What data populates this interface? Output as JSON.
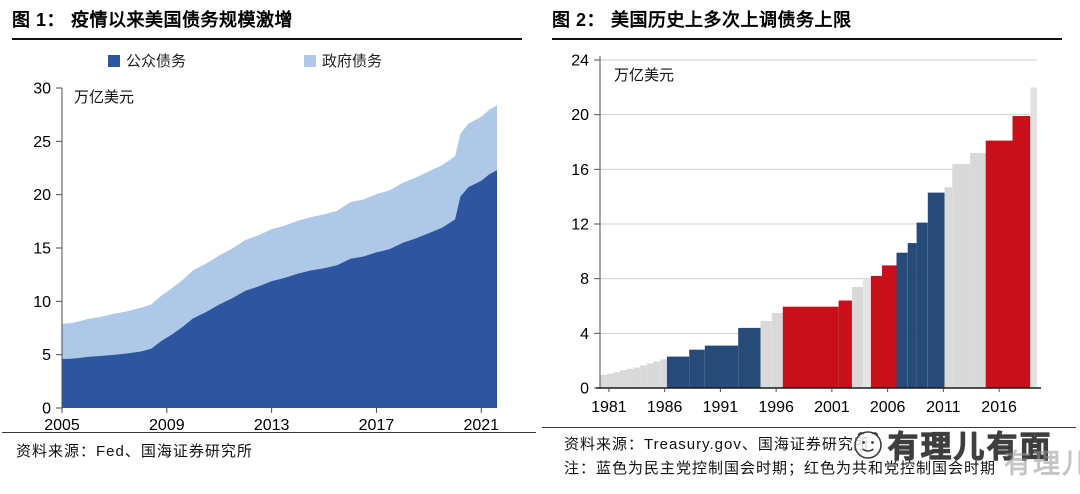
{
  "figure1": {
    "label": "图 1：",
    "title": "疫情以来美国债务规模激增",
    "unit": "万亿美元",
    "source": "资料来源：Fed、国海证券研究所",
    "legend": [
      {
        "label": "公众债务",
        "color": "#2e55a0"
      },
      {
        "label": "政府债务",
        "color": "#aec8e8"
      }
    ]
  },
  "figure2": {
    "label": "图 2：",
    "title": "美国历史上多次上调债务上限",
    "unit": "万亿美元",
    "source": "资料来源：Treasury.gov、国海证券研究所",
    "note": "注：蓝色为民主党控制国会时期；红色为共和党控制国会时期"
  },
  "watermark": {
    "text": "有理儿有面"
  },
  "colors": {
    "public_debt": "#2e55a0",
    "gov_debt": "#aec8e8",
    "dem_blue": "#274b78",
    "rep_red": "#c9101a",
    "neutral_gray": "#d9d9d9",
    "neutral_gray_light": "#e7e7e7",
    "gridline": "#cfcfcf",
    "axis": "#4d4d4d"
  },
  "chart_data": [
    {
      "type": "area",
      "stacked": true,
      "title": "疫情以来美国债务规模激增",
      "unit": "万亿美元",
      "ylim": [
        0,
        30
      ],
      "y_ticks": [
        0,
        5,
        10,
        15,
        20,
        25,
        30
      ],
      "x_ticks": [
        2005,
        2009,
        2013,
        2017,
        2021
      ],
      "x_range": [
        2005,
        2021.6
      ],
      "grid": false,
      "legend_position": "top",
      "series": [
        {
          "name": "公众债务",
          "color": "#2e55a0"
        },
        {
          "name": "政府债务",
          "color": "#aec8e8"
        }
      ],
      "points_format": [
        "year",
        "public_debt",
        "gov_debt_on_top"
      ],
      "points": [
        [
          2005.0,
          4.6,
          3.3
        ],
        [
          2005.3,
          4.62,
          3.33
        ],
        [
          2005.6,
          4.68,
          3.4
        ],
        [
          2006.0,
          4.8,
          3.55
        ],
        [
          2006.5,
          4.88,
          3.68
        ],
        [
          2007.0,
          5.0,
          3.85
        ],
        [
          2007.5,
          5.12,
          3.95
        ],
        [
          2008.0,
          5.3,
          4.1
        ],
        [
          2008.4,
          5.55,
          4.15
        ],
        [
          2008.8,
          6.3,
          4.25
        ],
        [
          2009.2,
          6.9,
          4.35
        ],
        [
          2009.6,
          7.6,
          4.4
        ],
        [
          2010.0,
          8.4,
          4.5
        ],
        [
          2010.5,
          9.0,
          4.55
        ],
        [
          2011.0,
          9.7,
          4.6
        ],
        [
          2011.5,
          10.3,
          4.65
        ],
        [
          2012.0,
          11.0,
          4.75
        ],
        [
          2012.5,
          11.4,
          4.8
        ],
        [
          2013.0,
          11.9,
          4.85
        ],
        [
          2013.5,
          12.2,
          4.9
        ],
        [
          2014.0,
          12.6,
          4.95
        ],
        [
          2014.5,
          12.9,
          5.0
        ],
        [
          2015.0,
          13.1,
          5.05
        ],
        [
          2015.5,
          13.4,
          5.1
        ],
        [
          2016.0,
          14.0,
          5.3
        ],
        [
          2016.5,
          14.2,
          5.35
        ],
        [
          2017.0,
          14.6,
          5.45
        ],
        [
          2017.5,
          14.9,
          5.5
        ],
        [
          2018.0,
          15.5,
          5.6
        ],
        [
          2018.5,
          15.9,
          5.7
        ],
        [
          2019.0,
          16.4,
          5.8
        ],
        [
          2019.5,
          16.9,
          5.85
        ],
        [
          2020.0,
          17.7,
          5.9
        ],
        [
          2020.2,
          19.8,
          5.9
        ],
        [
          2020.5,
          20.7,
          5.95
        ],
        [
          2021.0,
          21.3,
          6.0
        ],
        [
          2021.3,
          21.9,
          6.05
        ],
        [
          2021.6,
          22.3,
          6.1
        ]
      ]
    },
    {
      "type": "bar",
      "title": "美国历史上多次上调债务上限",
      "unit": "万亿美元",
      "ylim": [
        0,
        24
      ],
      "y_ticks": [
        0,
        4,
        8,
        12,
        16,
        20,
        24
      ],
      "x_ticks": [
        1981,
        1986,
        1991,
        1996,
        2001,
        2006,
        2011,
        2016
      ],
      "x_range": [
        1980.6,
        2019.8
      ],
      "grid": true,
      "party_colors": {
        "dem": "#274b78",
        "rep": "#c9101a",
        "other": "#d9d9d9",
        "other_light": "#e3e3e3"
      },
      "bars_format": [
        "from_year",
        "to_year",
        "ceiling_trillion_usd",
        "party"
      ],
      "bars": [
        [
          1980.6,
          1981.2,
          0.95,
          "other"
        ],
        [
          1981.2,
          1981.8,
          1.05,
          "other"
        ],
        [
          1981.8,
          1982.4,
          1.15,
          "other"
        ],
        [
          1982.4,
          1983.0,
          1.3,
          "other"
        ],
        [
          1983.0,
          1983.6,
          1.4,
          "other"
        ],
        [
          1983.6,
          1984.2,
          1.5,
          "other"
        ],
        [
          1984.2,
          1984.8,
          1.65,
          "other"
        ],
        [
          1984.8,
          1985.4,
          1.8,
          "other"
        ],
        [
          1985.4,
          1986.0,
          1.95,
          "other"
        ],
        [
          1986.0,
          1986.6,
          2.1,
          "other"
        ],
        [
          1986.6,
          1988.6,
          2.3,
          "dem"
        ],
        [
          1988.6,
          1990.0,
          2.8,
          "dem"
        ],
        [
          1990.0,
          1993.0,
          3.1,
          "dem"
        ],
        [
          1993.0,
          1995.0,
          4.4,
          "dem"
        ],
        [
          1995.0,
          1996.0,
          4.9,
          "other"
        ],
        [
          1996.0,
          1997.0,
          5.5,
          "other"
        ],
        [
          1997.0,
          2002.0,
          5.95,
          "rep"
        ],
        [
          2002.0,
          2003.2,
          6.4,
          "rep"
        ],
        [
          2003.2,
          2004.2,
          7.4,
          "other"
        ],
        [
          2004.2,
          2004.9,
          8.0,
          "other_light"
        ],
        [
          2004.9,
          2005.9,
          8.2,
          "rep"
        ],
        [
          2005.9,
          2007.2,
          8.97,
          "rep"
        ],
        [
          2007.2,
          2008.2,
          9.9,
          "dem"
        ],
        [
          2008.2,
          2009.0,
          10.6,
          "dem"
        ],
        [
          2009.0,
          2010.0,
          12.1,
          "dem"
        ],
        [
          2010.0,
          2011.5,
          14.3,
          "dem"
        ],
        [
          2011.5,
          2012.2,
          14.7,
          "other"
        ],
        [
          2012.2,
          2013.8,
          16.4,
          "other"
        ],
        [
          2013.8,
          2015.2,
          17.2,
          "other"
        ],
        [
          2015.2,
          2017.6,
          18.1,
          "rep"
        ],
        [
          2017.6,
          2019.2,
          19.9,
          "rep"
        ],
        [
          2019.2,
          2019.8,
          22.0,
          "other_light"
        ]
      ]
    }
  ]
}
